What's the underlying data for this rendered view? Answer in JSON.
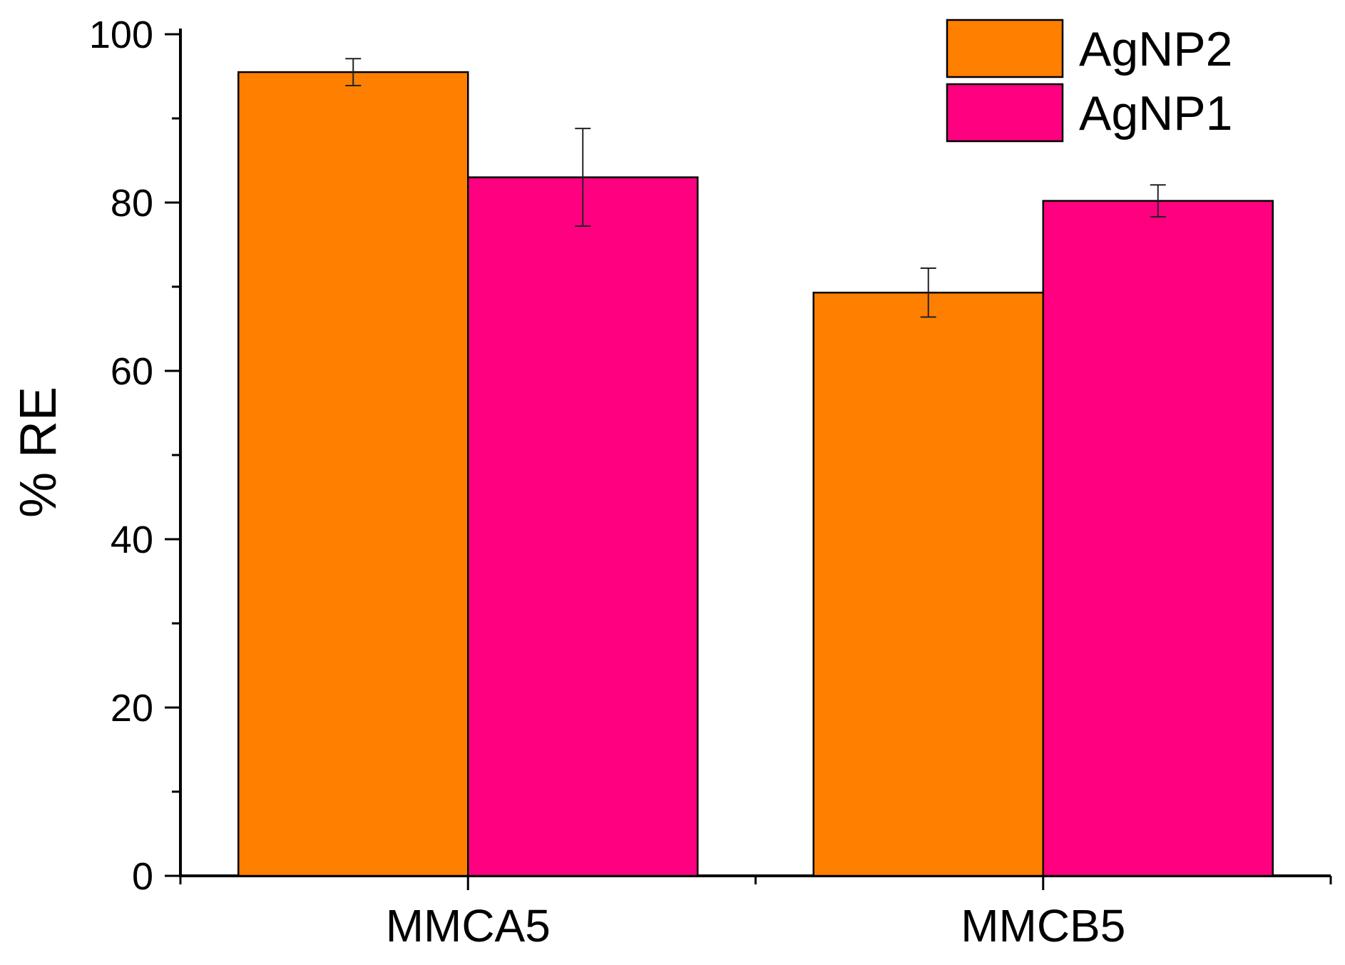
{
  "chart_data": {
    "type": "bar",
    "title": "",
    "xlabel": "",
    "ylabel": "% RE",
    "ylim": [
      0,
      100
    ],
    "yticks": [
      0,
      20,
      40,
      60,
      80,
      100
    ],
    "ytick_labels": [
      "0",
      "20",
      "40",
      "60",
      "80",
      "100"
    ],
    "categories": [
      "MMCA5",
      "MMCB5"
    ],
    "series": [
      {
        "name": "AgNP2",
        "color": "#ff8000",
        "values": [
          95.5,
          69.3
        ],
        "errors": [
          1.6,
          2.9
        ]
      },
      {
        "name": "AgNP1",
        "color": "#ff0080",
        "values": [
          83.0,
          80.2
        ],
        "errors": [
          5.8,
          1.9
        ]
      }
    ],
    "legend_position": "top-right",
    "grid": false
  }
}
